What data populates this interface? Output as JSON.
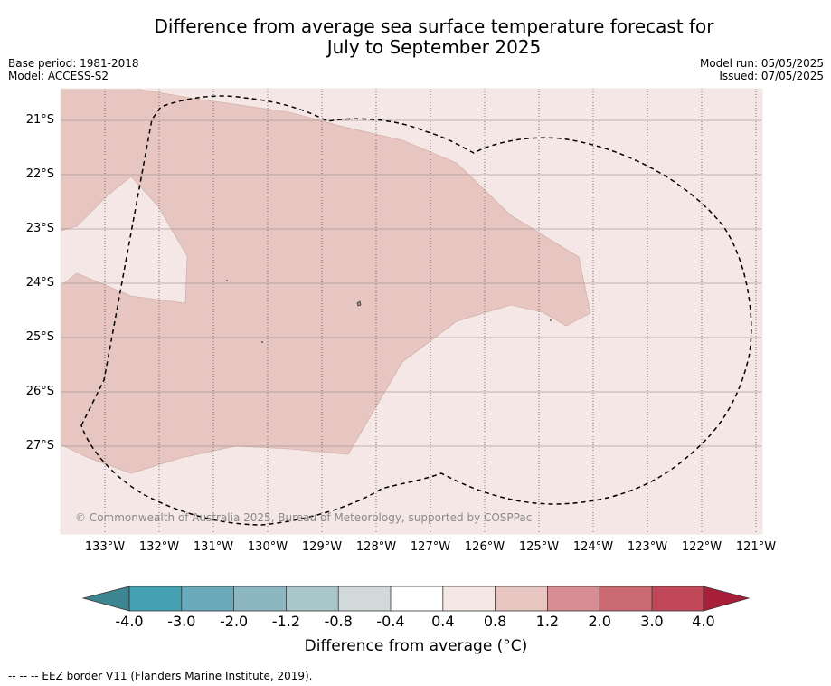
{
  "title_line1": "Difference from average sea surface temperature forecast for",
  "title_line2": "July to September 2025",
  "base_period": "Base period: 1981-2018",
  "model": "Model: ACCESS-S2",
  "model_run": "Model run: 05/05/2025",
  "issued": "Issued: 07/05/2025",
  "lat_labels": [
    "21°S",
    "22°S",
    "23°S",
    "24°S",
    "25°S",
    "26°S",
    "27°S"
  ],
  "lon_labels": [
    "133°W",
    "132°W",
    "131°W",
    "130°W",
    "129°W",
    "128°W",
    "127°W",
    "126°W",
    "125°W",
    "124°W",
    "123°W",
    "122°W",
    "121°W"
  ],
  "copyright": "© Commonwealth of Australia 2025, Bureau of Meteorology, supported by COSPPac",
  "colorbar": {
    "ticks": [
      "-4.0",
      "-3.0",
      "-2.0",
      "-1.2",
      "-0.8",
      "-0.4",
      "0.4",
      "0.8",
      "1.2",
      "2.0",
      "3.0",
      "4.0"
    ],
    "colors": [
      "#3d8590",
      "#45a0b2",
      "#6aabbb",
      "#8bb6c2",
      "#a9c6cb",
      "#d1d9db",
      "#ffffff",
      "#f5e7e5",
      "#e7c6c1",
      "#d68d94",
      "#cc6a74",
      "#c04858",
      "#a81f3a"
    ],
    "label": "Difference from average (°C)"
  },
  "footnote": "--  --  -- EEZ border V11 (Flanders Marine Institute, 2019)."
}
